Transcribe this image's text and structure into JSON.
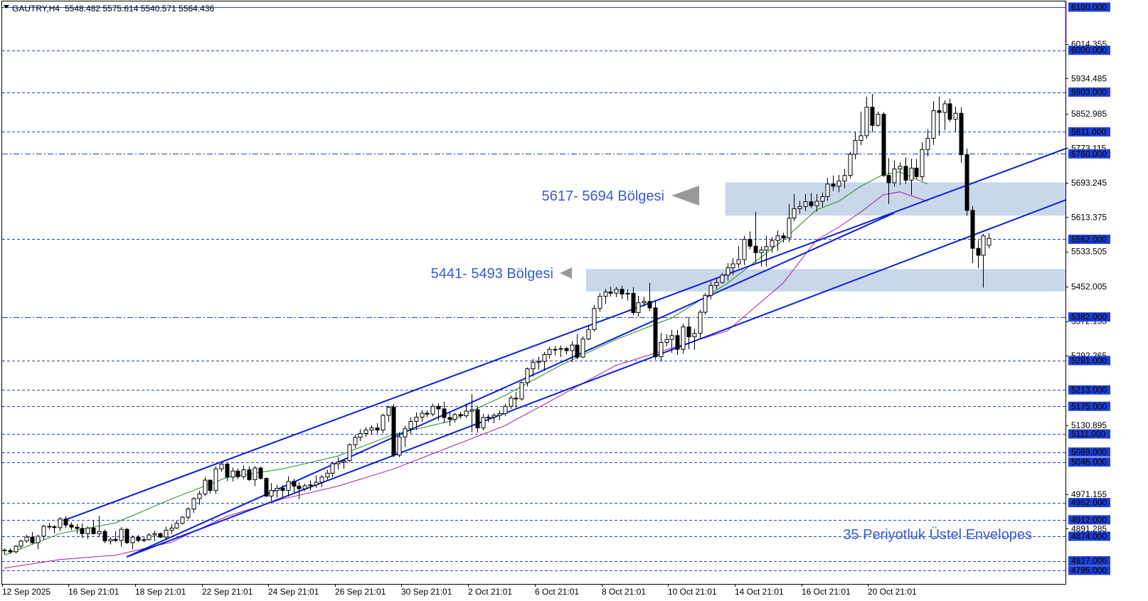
{
  "header": {
    "symbol": "GAUTRY,H4",
    "ohlc": "5548.482 5575.614 5540.571 5564.436"
  },
  "colors": {
    "grid_line": "#1f3fd0",
    "channel": "#0b1fd8",
    "zone_fill": "#c9d7ea",
    "annotation_text": "#3a5bd6",
    "envelope_upper": "#1f8a1f",
    "envelope_lower": "#a020a0",
    "candle": "#000000",
    "axis_label_bg": "#1f3fd0"
  },
  "annotations": {
    "zone_upper_label": "5617- 5694 Bölgesi",
    "zone_lower_label": "5441- 5493 Bölgesi",
    "envelopes_label": "35 Periyotluk Üstel Envelopes"
  },
  "chart_data": {
    "type": "candlestick",
    "title": "GAUTRY,H4",
    "ylim": [
      4775,
      6100
    ],
    "x_tick_labels": [
      "12 Sep 2025",
      "16 Sep 21:01",
      "18 Sep 21:01",
      "22 Sep 21:01",
      "24 Sep 21:01",
      "26 Sep 21:01",
      "30 Sep 21:01",
      "2 Oct 21:01",
      "6 Oct 21:01",
      "8 Oct 21:01",
      "10 Oct 21:01",
      "14 Oct 21:01",
      "16 Oct 21:01",
      "20 Oct 21:01"
    ],
    "price_scale_labels": [
      "6014.355",
      "5934.485",
      "5852.985",
      "5773.115",
      "5693.245",
      "5613.375",
      "5533.505",
      "5452.005",
      "5372.135",
      "5292.265",
      "5130.895",
      "4971.155",
      "4891.285"
    ],
    "horizontal_levels": [
      {
        "value": 6100.0,
        "label": "6100.000",
        "style": "solid"
      },
      {
        "value": 6000.0,
        "label": "6000.000",
        "style": "dashed"
      },
      {
        "value": 5903.0,
        "label": "5903.000",
        "style": "dashed"
      },
      {
        "value": 5811.0,
        "label": "5811.000",
        "style": "dashed"
      },
      {
        "value": 5760.0,
        "label": "5760.000",
        "style": "dashdot"
      },
      {
        "value": 5562.0,
        "label": "5562.000",
        "style": "dashed"
      },
      {
        "value": 5382.0,
        "label": "5382.000",
        "style": "dashdot"
      },
      {
        "value": 5281.0,
        "label": "5281.000",
        "style": "dashed"
      },
      {
        "value": 5213.0,
        "label": "5213.000",
        "style": "dashed"
      },
      {
        "value": 5175.0,
        "label": "5175.000",
        "style": "dashed"
      },
      {
        "value": 5111.0,
        "label": "5111.000",
        "style": "dashed"
      },
      {
        "value": 5069.0,
        "label": "5069.000",
        "style": "dashed"
      },
      {
        "value": 5046.0,
        "label": "5046.000",
        "style": "dashed"
      },
      {
        "value": 4952.0,
        "label": "4952.000",
        "style": "dashed"
      },
      {
        "value": 4912.0,
        "label": "4912.000",
        "style": "dashed"
      },
      {
        "value": 4874.0,
        "label": "4874.000",
        "style": "dashed"
      },
      {
        "value": 4817.0,
        "label": "4817.000",
        "style": "dashed"
      },
      {
        "value": 4795.0,
        "label": "4795.000",
        "style": "dashed"
      }
    ],
    "zones": [
      {
        "low": 5617,
        "high": 5694,
        "start_index": 130
      },
      {
        "low": 5441,
        "high": 5493,
        "start_index": 105
      }
    ],
    "trendlines": [
      {
        "from": [
          11,
          4912
        ],
        "to": [
          194,
          5772
        ]
      },
      {
        "from": [
          22,
          4826
        ],
        "to": [
          194,
          5653
        ]
      },
      {
        "from": [
          22,
          4826
        ],
        "to": [
          160,
          5623
        ]
      }
    ],
    "envelope_upper": [
      [
        0,
        4830
      ],
      [
        10,
        4880
      ],
      [
        20,
        4905
      ],
      [
        30,
        4960
      ],
      [
        40,
        5010
      ],
      [
        50,
        5030
      ],
      [
        60,
        5060
      ],
      [
        70,
        5110
      ],
      [
        80,
        5140
      ],
      [
        90,
        5200
      ],
      [
        100,
        5270
      ],
      [
        110,
        5330
      ],
      [
        120,
        5380
      ],
      [
        130,
        5460
      ],
      [
        140,
        5560
      ],
      [
        146,
        5630
      ],
      [
        150,
        5650
      ],
      [
        154,
        5685
      ],
      [
        158,
        5712
      ],
      [
        161,
        5718
      ],
      [
        166,
        5690
      ]
    ],
    "envelope_lower": [
      [
        0,
        4800
      ],
      [
        10,
        4820
      ],
      [
        20,
        4830
      ],
      [
        30,
        4860
      ],
      [
        40,
        4920
      ],
      [
        50,
        4960
      ],
      [
        60,
        4990
      ],
      [
        70,
        5030
      ],
      [
        80,
        5080
      ],
      [
        90,
        5130
      ],
      [
        100,
        5200
      ],
      [
        110,
        5270
      ],
      [
        120,
        5310
      ],
      [
        130,
        5350
      ],
      [
        140,
        5460
      ],
      [
        146,
        5560
      ],
      [
        150,
        5590
      ],
      [
        154,
        5625
      ],
      [
        158,
        5665
      ],
      [
        161,
        5672
      ],
      [
        166,
        5650
      ]
    ],
    "candles": [
      [
        4842,
        4846,
        4832,
        4841
      ],
      [
        4841,
        4846,
        4833,
        4838
      ],
      [
        4838,
        4853,
        4834,
        4851
      ],
      [
        4851,
        4866,
        4846,
        4863
      ],
      [
        4863,
        4877,
        4859,
        4872
      ],
      [
        4872,
        4884,
        4856,
        4859
      ],
      [
        4859,
        4877,
        4844,
        4874
      ],
      [
        4874,
        4900,
        4866,
        4897
      ],
      [
        4897,
        4905,
        4890,
        4896
      ],
      [
        4896,
        4900,
        4881,
        4894
      ],
      [
        4894,
        4918,
        4886,
        4914
      ],
      [
        4914,
        4920,
        4893,
        4900
      ],
      [
        4900,
        4906,
        4888,
        4895
      ],
      [
        4895,
        4902,
        4880,
        4892
      ],
      [
        4892,
        4904,
        4870,
        4880
      ],
      [
        4880,
        4897,
        4868,
        4893
      ],
      [
        4893,
        4910,
        4878,
        4880
      ],
      [
        4880,
        4921,
        4872,
        4885
      ],
      [
        4885,
        4890,
        4858,
        4863
      ],
      [
        4863,
        4872,
        4855,
        4867
      ],
      [
        4867,
        4886,
        4861,
        4864
      ],
      [
        4864,
        4895,
        4850,
        4890
      ],
      [
        4890,
        4893,
        4856,
        4859
      ],
      [
        4859,
        4876,
        4844,
        4872
      ],
      [
        4872,
        4877,
        4860,
        4864
      ],
      [
        4864,
        4872,
        4860,
        4866
      ],
      [
        4866,
        4881,
        4864,
        4877
      ],
      [
        4877,
        4887,
        4863,
        4880
      ],
      [
        4880,
        4883,
        4870,
        4872
      ],
      [
        4872,
        4896,
        4866,
        4888
      ],
      [
        4888,
        4902,
        4879,
        4893
      ],
      [
        4893,
        4910,
        4891,
        4904
      ],
      [
        4904,
        4921,
        4901,
        4918
      ],
      [
        4918,
        4941,
        4913,
        4937
      ],
      [
        4937,
        4965,
        4928,
        4961
      ],
      [
        4961,
        4979,
        4947,
        4972
      ],
      [
        4972,
        5011,
        4967,
        5004
      ],
      [
        5004,
        5005,
        4973,
        4980
      ],
      [
        4980,
        5036,
        4972,
        5030
      ],
      [
        5030,
        5045,
        5023,
        5041
      ],
      [
        5041,
        5045,
        5002,
        5011
      ],
      [
        5011,
        5033,
        5001,
        5025
      ],
      [
        5025,
        5031,
        5006,
        5012
      ],
      [
        5012,
        5038,
        5006,
        5028
      ],
      [
        5028,
        5036,
        5002,
        5005
      ],
      [
        5005,
        5037,
        4990,
        5032
      ],
      [
        5032,
        5035,
        5005,
        5008
      ],
      [
        5008,
        5010,
        4965,
        4967
      ],
      [
        4967,
        4997,
        4956,
        4980
      ],
      [
        4980,
        4993,
        4963,
        4985
      ],
      [
        4985,
        4992,
        4962,
        4980
      ],
      [
        4980,
        5013,
        4966,
        5001
      ],
      [
        5001,
        5007,
        4975,
        4990
      ],
      [
        4990,
        4999,
        4960,
        4984
      ],
      [
        4984,
        4996,
        4979,
        4991
      ],
      [
        4991,
        5003,
        4980,
        4993
      ],
      [
        4993,
        5015,
        4986,
        4999
      ],
      [
        4999,
        5016,
        4988,
        5011
      ],
      [
        5011,
        5028,
        5005,
        5020
      ],
      [
        5020,
        5047,
        5011,
        5042
      ],
      [
        5042,
        5057,
        5028,
        5046
      ],
      [
        5046,
        5052,
        5030,
        5049
      ],
      [
        5049,
        5089,
        5046,
        5086
      ],
      [
        5086,
        5109,
        5078,
        5103
      ],
      [
        5103,
        5122,
        5094,
        5112
      ],
      [
        5112,
        5127,
        5104,
        5120
      ],
      [
        5120,
        5131,
        5109,
        5125
      ],
      [
        5125,
        5136,
        5112,
        5120
      ],
      [
        5120,
        5158,
        5113,
        5154
      ],
      [
        5154,
        5177,
        5139,
        5173
      ],
      [
        5173,
        5180,
        5057,
        5062
      ],
      [
        5062,
        5115,
        5057,
        5104
      ],
      [
        5104,
        5130,
        5081,
        5123
      ],
      [
        5123,
        5149,
        5111,
        5140
      ],
      [
        5140,
        5161,
        5120,
        5150
      ],
      [
        5150,
        5166,
        5139,
        5159
      ],
      [
        5159,
        5166,
        5149,
        5157
      ],
      [
        5157,
        5181,
        5152,
        5175
      ],
      [
        5175,
        5182,
        5142,
        5169
      ],
      [
        5169,
        5186,
        5136,
        5149
      ],
      [
        5149,
        5161,
        5130,
        5145
      ],
      [
        5145,
        5160,
        5137,
        5156
      ],
      [
        5156,
        5162,
        5146,
        5153
      ],
      [
        5153,
        5181,
        5148,
        5164
      ],
      [
        5164,
        5203,
        5115,
        5167
      ],
      [
        5167,
        5174,
        5114,
        5125
      ],
      [
        5125,
        5158,
        5119,
        5149
      ],
      [
        5149,
        5157,
        5138,
        5150
      ],
      [
        5150,
        5159,
        5136,
        5154
      ],
      [
        5154,
        5165,
        5143,
        5158
      ],
      [
        5158,
        5181,
        5152,
        5175
      ],
      [
        5175,
        5200,
        5169,
        5194
      ],
      [
        5194,
        5208,
        5172,
        5192
      ],
      [
        5192,
        5233,
        5188,
        5230
      ],
      [
        5230,
        5265,
        5221,
        5262
      ],
      [
        5262,
        5285,
        5244,
        5277
      ],
      [
        5277,
        5290,
        5260,
        5279
      ],
      [
        5279,
        5301,
        5257,
        5295
      ],
      [
        5295,
        5313,
        5286,
        5307
      ],
      [
        5307,
        5315,
        5293,
        5307
      ],
      [
        5307,
        5316,
        5289,
        5309
      ],
      [
        5309,
        5313,
        5295,
        5304
      ],
      [
        5304,
        5326,
        5277,
        5317
      ],
      [
        5317,
        5342,
        5284,
        5289
      ],
      [
        5289,
        5337,
        5287,
        5331
      ],
      [
        5331,
        5362,
        5328,
        5353
      ],
      [
        5353,
        5410,
        5348,
        5402
      ],
      [
        5402,
        5438,
        5394,
        5430
      ],
      [
        5430,
        5447,
        5412,
        5440
      ],
      [
        5440,
        5452,
        5429,
        5437
      ],
      [
        5437,
        5452,
        5428,
        5446
      ],
      [
        5446,
        5454,
        5424,
        5435
      ],
      [
        5435,
        5446,
        5420,
        5437
      ],
      [
        5437,
        5451,
        5386,
        5392
      ],
      [
        5392,
        5431,
        5383,
        5415
      ],
      [
        5415,
        5429,
        5406,
        5418
      ],
      [
        5418,
        5461,
        5396,
        5403
      ],
      [
        5403,
        5420,
        5283,
        5290
      ],
      [
        5290,
        5345,
        5279,
        5323
      ],
      [
        5323,
        5342,
        5314,
        5330
      ],
      [
        5330,
        5352,
        5299,
        5339
      ],
      [
        5339,
        5352,
        5294,
        5307
      ],
      [
        5307,
        5366,
        5297,
        5359
      ],
      [
        5359,
        5379,
        5307,
        5336
      ],
      [
        5336,
        5355,
        5306,
        5344
      ],
      [
        5344,
        5399,
        5330,
        5393
      ],
      [
        5393,
        5438,
        5387,
        5432
      ],
      [
        5432,
        5464,
        5423,
        5455
      ],
      [
        5455,
        5472,
        5447,
        5462
      ],
      [
        5462,
        5484,
        5459,
        5479
      ],
      [
        5479,
        5507,
        5466,
        5496
      ],
      [
        5496,
        5518,
        5479,
        5505
      ],
      [
        5505,
        5546,
        5495,
        5515
      ],
      [
        5515,
        5570,
        5502,
        5562
      ],
      [
        5562,
        5580,
        5539,
        5546
      ],
      [
        5546,
        5626,
        5508,
        5531
      ],
      [
        5531,
        5545,
        5499,
        5537
      ],
      [
        5537,
        5570,
        5499,
        5545
      ],
      [
        5545,
        5567,
        5531,
        5559
      ],
      [
        5559,
        5582,
        5535,
        5570
      ],
      [
        5570,
        5577,
        5555,
        5565
      ],
      [
        5565,
        5644,
        5556,
        5611
      ],
      [
        5611,
        5667,
        5604,
        5633
      ],
      [
        5633,
        5651,
        5621,
        5638
      ],
      [
        5638,
        5667,
        5627,
        5649
      ],
      [
        5649,
        5669,
        5634,
        5640
      ],
      [
        5640,
        5667,
        5626,
        5650
      ],
      [
        5650,
        5670,
        5637,
        5661
      ],
      [
        5661,
        5704,
        5651,
        5690
      ],
      [
        5690,
        5710,
        5674,
        5685
      ],
      [
        5685,
        5711,
        5671,
        5697
      ],
      [
        5697,
        5725,
        5680,
        5710
      ],
      [
        5710,
        5765,
        5703,
        5759
      ],
      [
        5759,
        5810,
        5747,
        5791
      ],
      [
        5791,
        5858,
        5780,
        5802
      ],
      [
        5802,
        5892,
        5795,
        5868
      ],
      [
        5868,
        5899,
        5810,
        5826
      ],
      [
        5826,
        5858,
        5823,
        5852
      ],
      [
        5852,
        5857,
        5706,
        5710
      ],
      [
        5710,
        5750,
        5644,
        5693
      ],
      [
        5693,
        5744,
        5684,
        5725
      ],
      [
        5725,
        5740,
        5688,
        5731
      ],
      [
        5731,
        5751,
        5690,
        5699
      ],
      [
        5699,
        5749,
        5665,
        5727
      ],
      [
        5727,
        5748,
        5702,
        5707
      ],
      [
        5707,
        5787,
        5698,
        5770
      ],
      [
        5770,
        5817,
        5754,
        5796
      ],
      [
        5796,
        5882,
        5781,
        5860
      ],
      [
        5860,
        5893,
        5802,
        5856
      ],
      [
        5856,
        5884,
        5815,
        5876
      ],
      [
        5876,
        5888,
        5834,
        5840
      ],
      [
        5840,
        5869,
        5810,
        5854
      ],
      [
        5854,
        5868,
        5739,
        5758
      ],
      [
        5758,
        5772,
        5617,
        5629
      ],
      [
        5629,
        5639,
        5507,
        5541
      ],
      [
        5541,
        5560,
        5495,
        5525
      ],
      [
        5525,
        5575,
        5450,
        5570
      ],
      [
        5548,
        5576,
        5541,
        5564
      ]
    ]
  }
}
